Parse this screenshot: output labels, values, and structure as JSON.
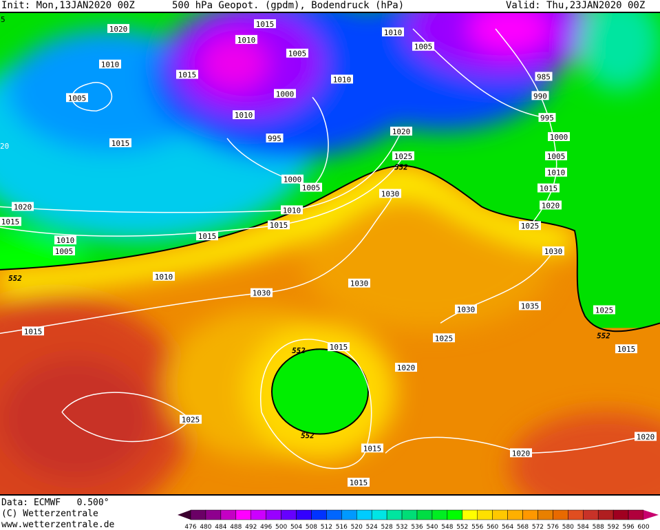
{
  "header": {
    "init": "Init: Mon,13JAN2020 00Z",
    "title": "500 hPa Geopot. (gpdm), Bodendruck (hPa)",
    "valid": "Valid: Thu,23JAN2020 00Z"
  },
  "footer": {
    "data_source": "Data: ECMWF   0.500°",
    "copyright": "(C) Wetterzentrale",
    "website": "www.wetterzentrale.de"
  },
  "legend": {
    "labels": [
      "476",
      "480",
      "484",
      "488",
      "492",
      "496",
      "500",
      "504",
      "508",
      "512",
      "516",
      "520",
      "524",
      "528",
      "532",
      "536",
      "540",
      "548",
      "552",
      "556",
      "560",
      "564",
      "568",
      "572",
      "576",
      "580",
      "584",
      "588",
      "592",
      "596",
      "600"
    ],
    "colors": [
      "#6b0066",
      "#8e008e",
      "#c400c4",
      "#ff00ff",
      "#cc00ff",
      "#9900ff",
      "#6600ff",
      "#3300ff",
      "#0033ff",
      "#0066ff",
      "#0099ff",
      "#00ccff",
      "#00e5e5",
      "#00e5a0",
      "#00dd77",
      "#00dd44",
      "#00ee22",
      "#00ff00",
      "#ffff00",
      "#ffe000",
      "#ffc800",
      "#ffb000",
      "#ff9800",
      "#e88000",
      "#e86a00",
      "#e04e20",
      "#c83228",
      "#b01e20",
      "#a00020",
      "#b0003c"
    ],
    "low_arrow_color": "#3c0030",
    "high_arrow_color": "#c8006e"
  },
  "map": {
    "isobar_labels": [
      "1015",
      "1010",
      "1010",
      "1005",
      "1005",
      "1020",
      "1010",
      "1015",
      "1005",
      "1010",
      "985",
      "990",
      "1000",
      "1010",
      "995",
      "995",
      "1015",
      "1020",
      "1000",
      "1025",
      "1005",
      "1010",
      "1000",
      "1005",
      "1015",
      "1030",
      "1020",
      "1020",
      "1010",
      "1015",
      "1025",
      "1015",
      "1015",
      "1010",
      "1005",
      "1030",
      "1010",
      "1030",
      "1030",
      "1030",
      "1035",
      "1025",
      "1015",
      "1025",
      "1015",
      "1015",
      "1020",
      "1025",
      "1020",
      "1015",
      "1020",
      "1015"
    ],
    "geopot_labels": [
      "552",
      "552",
      "552",
      "552",
      "552"
    ],
    "edge_labels": [
      "5",
      "20"
    ]
  }
}
